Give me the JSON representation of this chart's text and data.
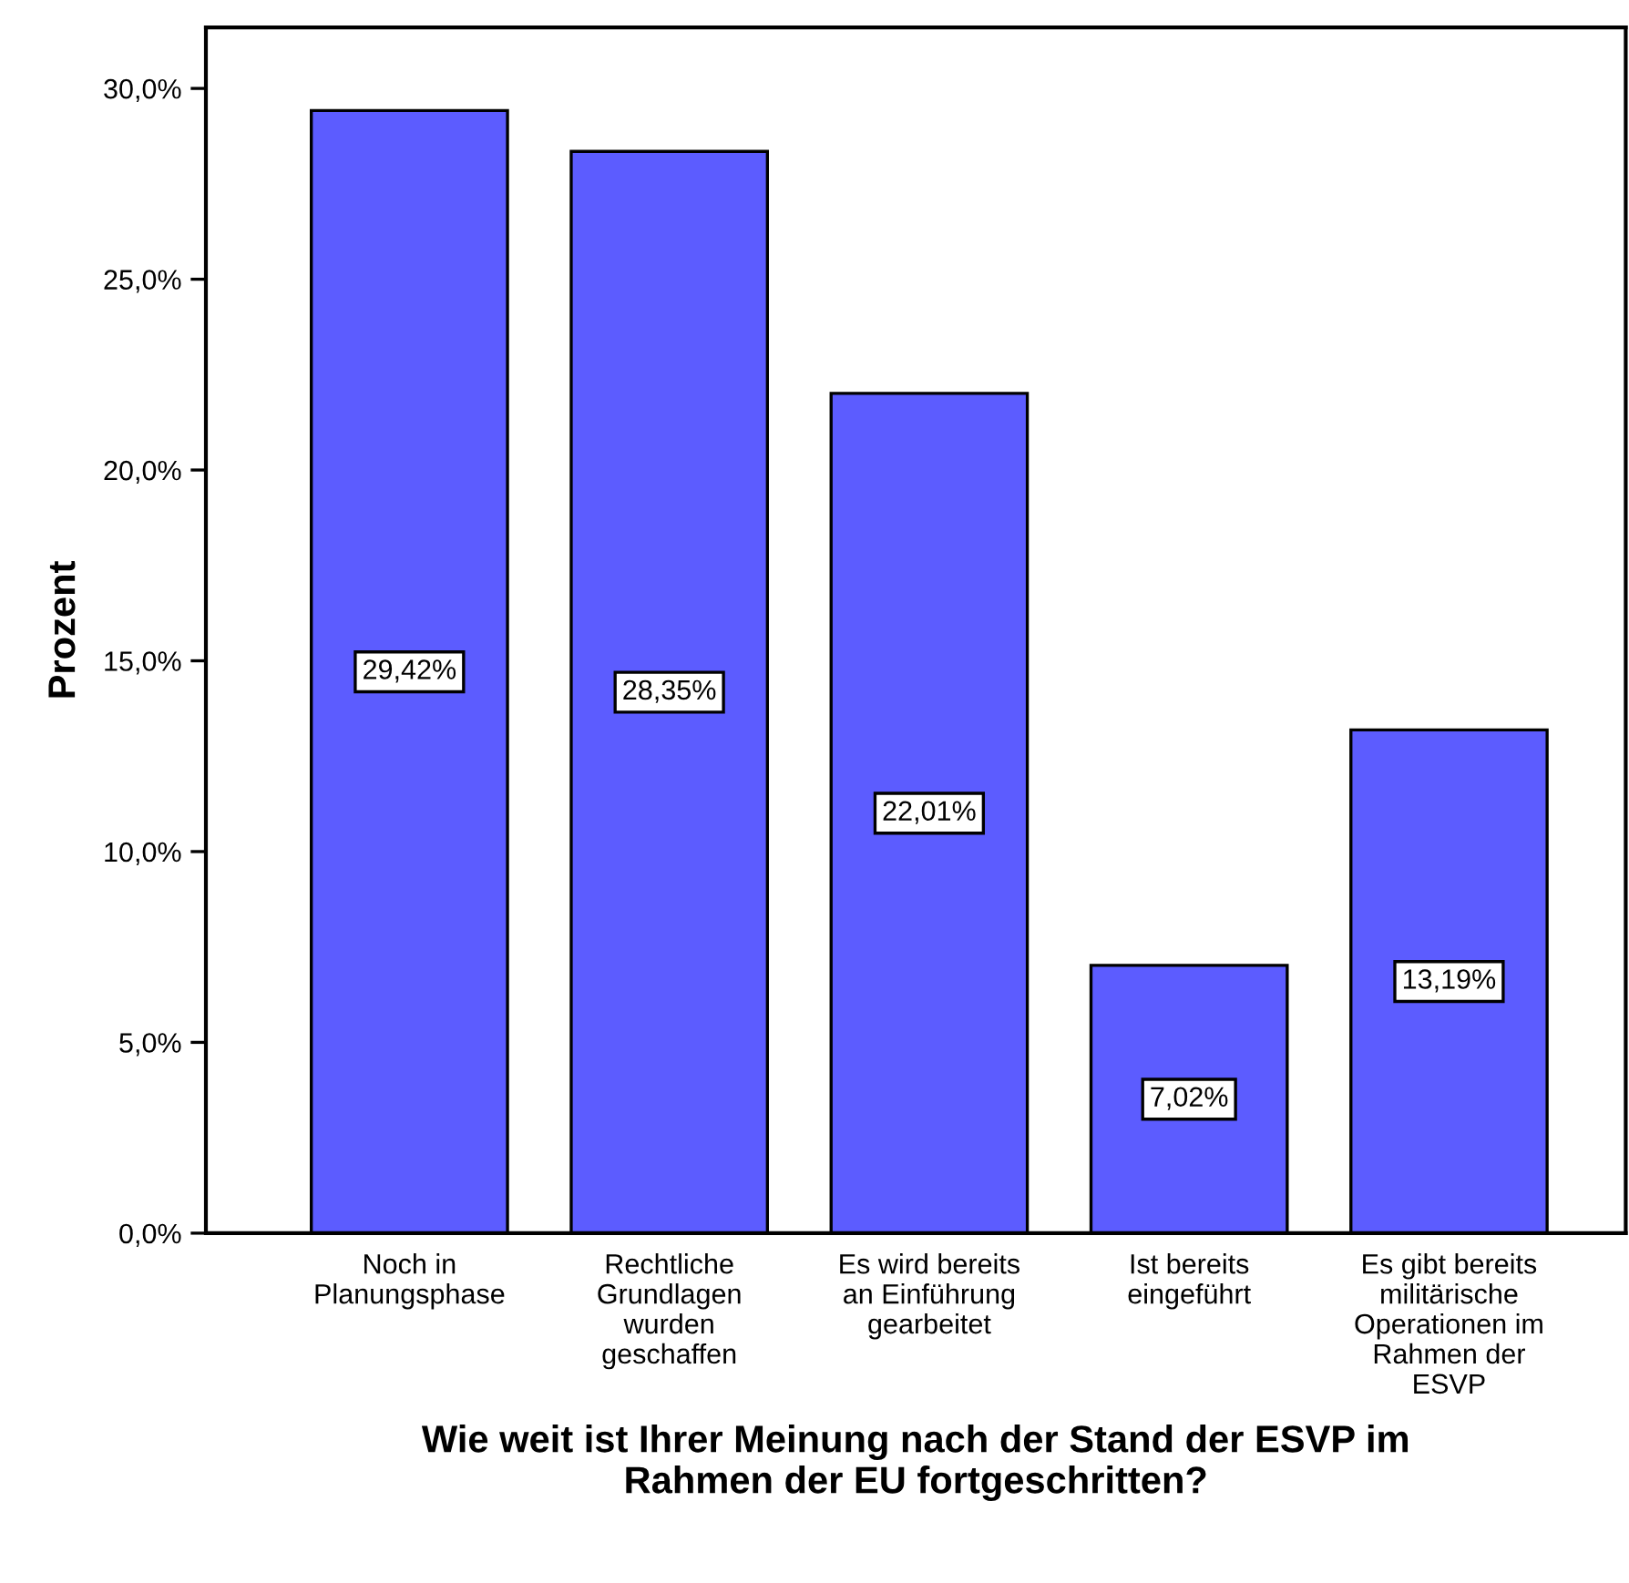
{
  "chart_data": {
    "type": "bar",
    "xlabel": "Wie weit ist Ihrer Meinung nach der Stand der ESVP im\nRahmen der EU fortgeschritten?",
    "ylabel": "Prozent",
    "categories": [
      "Noch in\nPlanungsphase",
      "Rechtliche\nGrundlagen\nwurden\ngeschaffen",
      "Es wird bereits\nan Einführung\ngearbeitet",
      "Ist bereits\neingeführt",
      "Es gibt bereits\nmilitärische\nOperationen im\nRahmen der\nESVP"
    ],
    "values": [
      29.42,
      28.35,
      22.01,
      7.02,
      13.19
    ],
    "value_labels": [
      "29,42%",
      "28,35%",
      "22,01%",
      "7,02%",
      "13,19%"
    ],
    "color": "#5c5cff",
    "ylim": [
      0,
      31.6
    ],
    "yticks": [
      {
        "value": 0,
        "label": "0,0%"
      },
      {
        "value": 5,
        "label": "5,0%"
      },
      {
        "value": 10,
        "label": "10,0%"
      },
      {
        "value": 15,
        "label": "15,0%"
      },
      {
        "value": 20,
        "label": "20,0%"
      },
      {
        "value": 25,
        "label": "25,0%"
      },
      {
        "value": 30,
        "label": "30,0%"
      }
    ],
    "grid": false
  }
}
